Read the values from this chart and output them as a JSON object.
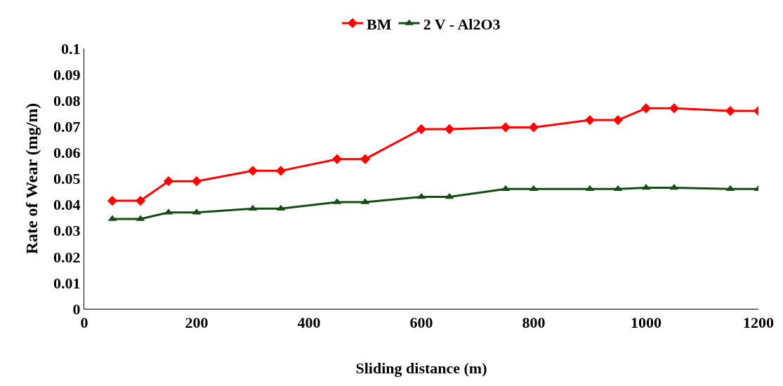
{
  "chart_data": {
    "type": "line",
    "xlabel": "Sliding distance (m)",
    "ylabel": "Rate of Wear (mg/m)",
    "x": [
      50,
      100,
      150,
      200,
      300,
      350,
      450,
      500,
      600,
      650,
      750,
      800,
      900,
      950,
      1000,
      1050,
      1150,
      1200
    ],
    "series": [
      {
        "name": "BM",
        "color": "#ff0000",
        "marker": "diamond",
        "values": [
          0.0415,
          0.0415,
          0.049,
          0.049,
          0.053,
          0.053,
          0.0575,
          0.0575,
          0.069,
          0.069,
          0.0697,
          0.0697,
          0.0725,
          0.0725,
          0.077,
          0.077,
          0.076,
          0.076
        ]
      },
      {
        "name": "2 V - Al2O3",
        "color": "#154d15",
        "marker": "triangle",
        "values": [
          0.0345,
          0.0345,
          0.037,
          0.037,
          0.0385,
          0.0385,
          0.041,
          0.041,
          0.043,
          0.043,
          0.046,
          0.046,
          0.046,
          0.046,
          0.0465,
          0.0465,
          0.046,
          0.046
        ]
      }
    ],
    "xlim": [
      0,
      1200
    ],
    "xticks": [
      0,
      200,
      400,
      600,
      800,
      1000,
      1200
    ],
    "ylim": [
      0,
      0.1
    ],
    "yticks": [
      0,
      0.01,
      0.02,
      0.03,
      0.04,
      0.05,
      0.06,
      0.07,
      0.08,
      0.09,
      0.1
    ],
    "legend": "top",
    "line_style": "solid"
  }
}
